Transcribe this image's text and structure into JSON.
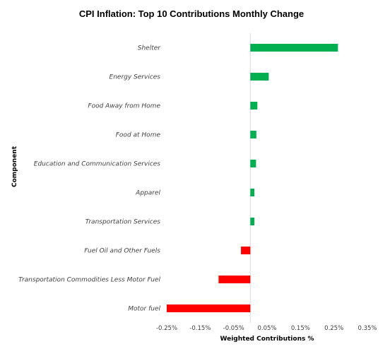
{
  "chart_data": {
    "type": "bar",
    "orientation": "horizontal",
    "title": "CPI Inflation: Top 10 Contributions Monthly Change",
    "xlabel": "Weighted Contributions %",
    "ylabel": "Component",
    "categories": [
      "Shelter",
      "Energy Services",
      "Food Away from Home",
      "Food at Home",
      "Education and Communication Services",
      "Apparel",
      "Transportation Services",
      "Fuel Oil and Other Fuels",
      "Transportation Commodities Less Motor Fuel",
      "Motor fuel"
    ],
    "values": [
      0.262,
      0.055,
      0.021,
      0.018,
      0.017,
      0.012,
      0.012,
      -0.028,
      -0.095,
      -0.25
    ],
    "xlim": [
      -0.25,
      0.35
    ],
    "xticks": [
      -0.25,
      -0.15,
      -0.05,
      0.05,
      0.15,
      0.25,
      0.35
    ],
    "xtick_labels": [
      "-0.25%",
      "-0.15%",
      "-0.05%",
      "0.05%",
      "0.15%",
      "0.25%",
      "0.35%"
    ],
    "colors": {
      "positive": "#00b050",
      "negative": "#ff0000",
      "zero_line": "#d9d9d9"
    },
    "grid": false,
    "legend": "none"
  }
}
